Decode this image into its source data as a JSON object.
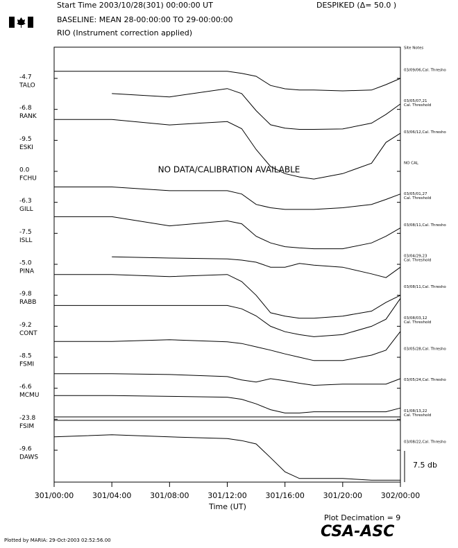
{
  "chart_data": {
    "type": "stackplot",
    "header": [
      "Start Time 2003/10/28(301) 00:00:00 UT",
      "BASELINE: MEAN 28-00:00:00 TO 29-00:00:00",
      "RIO (Instrument correction applied)"
    ],
    "despiked": "DESPIKED (Δ= 50.0  )",
    "site_notes_title": "Site Notes",
    "annotation": "NO DATA/CALIBRATION AVAILABLE",
    "xlabel": "Time (UT)",
    "xlim": [
      0,
      24
    ],
    "xticks": [
      {
        "value": 0,
        "label": "301/00:00"
      },
      {
        "value": 4,
        "label": "301/04:00"
      },
      {
        "value": 8,
        "label": "301/08:00"
      },
      {
        "value": 12,
        "label": "301/12:00"
      },
      {
        "value": 16,
        "label": "301/16:00"
      },
      {
        "value": 20,
        "label": "301/20:00"
      },
      {
        "value": 24,
        "label": "302/00:00"
      }
    ],
    "scale_bar": {
      "value": 7.5,
      "label": "7.5 db"
    },
    "color": "#000000",
    "x": [
      0,
      4,
      8,
      12,
      13,
      14,
      15,
      16,
      17,
      18,
      20,
      22,
      23,
      24
    ],
    "series": [
      {
        "name": "TALO",
        "baseline": "-4.7",
        "note": [
          "03/09/06,Cal. Thresho"
        ],
        "values": [
          1.7,
          1.7,
          1.7,
          1.7,
          1.2,
          0.5,
          -1.7,
          -2.5,
          -2.8,
          -2.8,
          -3,
          -2.8,
          -1.5,
          0
        ]
      },
      {
        "name": "RANK",
        "baseline": "-6.8",
        "note": [
          "03/05/07,21",
          "Cal. Threshold"
        ],
        "values": [
          null,
          3.8,
          3,
          5,
          3.8,
          -0.3,
          -3.7,
          -4.5,
          -4.8,
          -4.8,
          -4.7,
          -3.3,
          -1.2,
          1.3
        ]
      },
      {
        "name": "ESKI",
        "baseline": "-9.5",
        "note": [
          "03/06/12,Cal. Thresho"
        ],
        "values": [
          5,
          5,
          3.7,
          4.5,
          2.8,
          -2.2,
          -6.3,
          -8,
          -8.8,
          -9.3,
          -8,
          -5.5,
          -0.5,
          1.7
        ]
      },
      {
        "name": "FCHU",
        "baseline": "0.0",
        "note": [
          "NO CAL"
        ],
        "values": [
          null,
          null,
          null,
          null,
          null,
          null,
          null,
          null,
          null,
          null,
          null,
          null,
          null,
          null
        ]
      },
      {
        "name": "GILL",
        "baseline": "-6.3",
        "note": [
          "03/05/01,27",
          "Cal. Threshold"
        ],
        "values": [
          3.7,
          3.7,
          2.8,
          2.8,
          2,
          -0.5,
          -1.3,
          -1.7,
          -1.7,
          -1.7,
          -1.3,
          -0.5,
          0.7,
          2
        ]
      },
      {
        "name": "ISLL",
        "baseline": "-7.5",
        "note": [
          "03/08/11,Cal. Thresho"
        ],
        "values": [
          4,
          4,
          1.8,
          3,
          2.3,
          -0.7,
          -2.3,
          -3.2,
          -3.5,
          -3.7,
          -3.7,
          -2.3,
          -0.7,
          1.3
        ]
      },
      {
        "name": "PINA",
        "baseline": "-5.0",
        "note": [
          "03/04/29,23",
          "Cal. Threshold"
        ],
        "values": [
          null,
          1.8,
          1.5,
          1.3,
          1,
          0.5,
          -0.7,
          -0.7,
          0.2,
          -0.2,
          -0.7,
          -2.3,
          -3.2,
          -0.7
        ]
      },
      {
        "name": "RABB",
        "baseline": "-9.8",
        "note": [
          "03/08/11,Cal. Thresho"
        ],
        "values": [
          5,
          5,
          4.5,
          5,
          3.3,
          0,
          -4.2,
          -5,
          -5.5,
          -5.5,
          -5,
          -3.8,
          -1.7,
          0
        ]
      },
      {
        "name": "CONT",
        "baseline": "-9.2",
        "note": [
          "03/08/03,12",
          "Cal. Threshold"
        ],
        "values": [
          5,
          5,
          5,
          5,
          4.2,
          2.5,
          0,
          -1.3,
          -2,
          -2.5,
          -2,
          0,
          1.7,
          6.7
        ]
      },
      {
        "name": "FSMI",
        "baseline": "-8.5",
        "note": [
          "03/05/28,Cal. Thresho"
        ],
        "values": [
          3.8,
          3.8,
          4.2,
          3.7,
          3.3,
          2.5,
          1.7,
          0.8,
          0,
          -0.8,
          -0.8,
          0.5,
          1.7,
          6.2
        ]
      },
      {
        "name": "MCMU",
        "baseline": "-6.6",
        "note": [
          "03/05/24,Cal. Thresho"
        ],
        "values": [
          3.5,
          3.5,
          3.3,
          2.8,
          2,
          1.5,
          2.3,
          1.8,
          1.2,
          0.7,
          1,
          1,
          1,
          2.3
        ]
      },
      {
        "name": "FSIM",
        "baseline": "-23.8",
        "note": [
          "01/08/13,22",
          "Cal. Threshold"
        ],
        "values": [
          5.7,
          5.7,
          5.5,
          5.3,
          4.8,
          3.7,
          2.3,
          1.5,
          1.5,
          1.8,
          1.8,
          1.8,
          1.8,
          2.7
        ]
      },
      {
        "name": "DAWS",
        "baseline": "-9.6",
        "note": [
          "03/08/22,Cal. Thresho"
        ],
        "values": [
          3.2,
          3.7,
          3.2,
          2.8,
          2.3,
          1.5,
          -1.8,
          -5.2,
          -6.8,
          -6.8,
          -6.8,
          -7.2,
          -7.2,
          -7.2
        ]
      }
    ],
    "decimation": "Plot Decimation = 9",
    "logo": "CSA-ASC",
    "plotted_by": "Plotted by MARIA: 29-Oct-2003 02:52:56.00"
  }
}
